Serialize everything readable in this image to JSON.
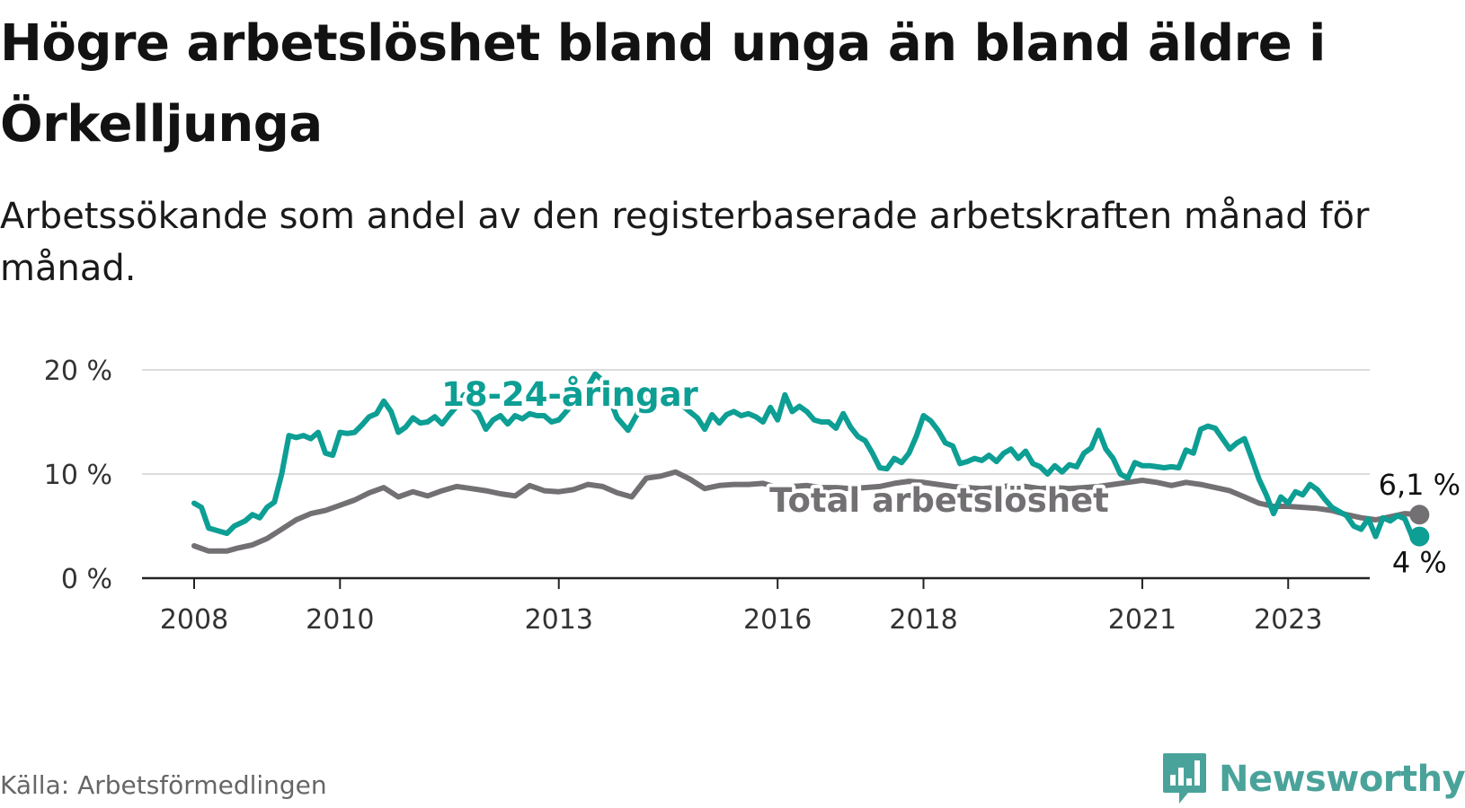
{
  "title": "Högre arbetslöshet bland unga än bland äldre i Örkelljunga",
  "subtitle": "Arbetssökande som andel av den registerbaserade arbetskraften månad för månad.",
  "source": "Källa: Arbetsförmedlingen",
  "brand": {
    "name": "Newsworthy",
    "icon": "newsworthy-logo-icon",
    "color": "#4aa39a"
  },
  "chart_data": {
    "type": "line",
    "title": "Högre arbetslöshet bland unga än bland äldre i Örkelljunga",
    "xlabel": "",
    "ylabel": "",
    "x_range": [
      2008,
      2023.8
    ],
    "ylim": [
      0,
      20
    ],
    "grid": true,
    "y_ticks": [
      {
        "value": 0,
        "label": "0 %"
      },
      {
        "value": 10,
        "label": "10 %"
      },
      {
        "value": 20,
        "label": "20 %"
      }
    ],
    "x_ticks": [
      {
        "value": 2008,
        "label": "2008"
      },
      {
        "value": 2010,
        "label": "2010"
      },
      {
        "value": 2013,
        "label": "2013"
      },
      {
        "value": 2016,
        "label": "2016"
      },
      {
        "value": 2018,
        "label": "2018"
      },
      {
        "value": 2021,
        "label": "2021"
      },
      {
        "value": 2023,
        "label": "2023"
      }
    ],
    "series": [
      {
        "name": "18-24-åringar",
        "color": "#0d9e94",
        "end_label": "4 %",
        "points": [
          [
            2008.0,
            7.2
          ],
          [
            2008.1,
            6.8
          ],
          [
            2008.2,
            4.8
          ],
          [
            2008.45,
            4.3
          ],
          [
            2008.55,
            5.0
          ],
          [
            2008.7,
            5.5
          ],
          [
            2008.8,
            6.1
          ],
          [
            2008.9,
            5.8
          ],
          [
            2009.0,
            6.8
          ],
          [
            2009.1,
            7.3
          ],
          [
            2009.2,
            10.0
          ],
          [
            2009.3,
            13.7
          ],
          [
            2009.4,
            13.5
          ],
          [
            2009.5,
            13.7
          ],
          [
            2009.6,
            13.4
          ],
          [
            2009.7,
            14.0
          ],
          [
            2009.8,
            12.0
          ],
          [
            2009.9,
            11.8
          ],
          [
            2010.0,
            14.0
          ],
          [
            2010.1,
            13.9
          ],
          [
            2010.2,
            14.0
          ],
          [
            2010.3,
            14.7
          ],
          [
            2010.4,
            15.5
          ],
          [
            2010.5,
            15.8
          ],
          [
            2010.6,
            17.0
          ],
          [
            2010.7,
            16.0
          ],
          [
            2010.8,
            14.0
          ],
          [
            2010.9,
            14.5
          ],
          [
            2011.0,
            15.4
          ],
          [
            2011.1,
            14.9
          ],
          [
            2011.2,
            15.0
          ],
          [
            2011.3,
            15.5
          ],
          [
            2011.4,
            14.8
          ],
          [
            2011.5,
            15.7
          ],
          [
            2011.6,
            16.5
          ],
          [
            2011.7,
            17.6
          ],
          [
            2011.8,
            16.5
          ],
          [
            2011.9,
            15.8
          ],
          [
            2012.0,
            14.3
          ],
          [
            2012.1,
            15.2
          ],
          [
            2012.2,
            15.6
          ],
          [
            2012.3,
            14.8
          ],
          [
            2012.4,
            15.6
          ],
          [
            2012.5,
            15.3
          ],
          [
            2012.6,
            15.8
          ],
          [
            2012.7,
            15.6
          ],
          [
            2012.8,
            15.6
          ],
          [
            2012.9,
            15.0
          ],
          [
            2013.0,
            15.2
          ],
          [
            2013.4,
            18.4
          ],
          [
            2013.5,
            19.6
          ],
          [
            2013.6,
            19.0
          ],
          [
            2013.8,
            15.4
          ],
          [
            2013.95,
            14.2
          ],
          [
            2014.2,
            17.3
          ],
          [
            2014.6,
            17.1
          ],
          [
            2014.9,
            15.4
          ],
          [
            2015.0,
            14.3
          ],
          [
            2015.1,
            15.7
          ],
          [
            2015.2,
            14.9
          ],
          [
            2015.3,
            15.7
          ],
          [
            2015.4,
            16.0
          ],
          [
            2015.5,
            15.6
          ],
          [
            2015.6,
            15.8
          ],
          [
            2015.7,
            15.5
          ],
          [
            2015.8,
            15.0
          ],
          [
            2015.9,
            16.4
          ],
          [
            2016.0,
            15.2
          ],
          [
            2016.1,
            17.6
          ],
          [
            2016.2,
            16.0
          ],
          [
            2016.3,
            16.5
          ],
          [
            2016.4,
            16.0
          ],
          [
            2016.5,
            15.2
          ],
          [
            2016.6,
            15.0
          ],
          [
            2016.7,
            15.0
          ],
          [
            2016.8,
            14.4
          ],
          [
            2016.9,
            15.8
          ],
          [
            2017.0,
            14.5
          ],
          [
            2017.1,
            13.6
          ],
          [
            2017.2,
            13.2
          ],
          [
            2017.3,
            12.0
          ],
          [
            2017.4,
            10.6
          ],
          [
            2017.5,
            10.5
          ],
          [
            2017.6,
            11.5
          ],
          [
            2017.7,
            11.1
          ],
          [
            2017.8,
            12.0
          ],
          [
            2017.9,
            13.6
          ],
          [
            2018.0,
            15.6
          ],
          [
            2018.1,
            15.1
          ],
          [
            2018.2,
            14.2
          ],
          [
            2018.3,
            13.0
          ],
          [
            2018.4,
            12.7
          ],
          [
            2018.5,
            11.0
          ],
          [
            2018.6,
            11.2
          ],
          [
            2018.7,
            11.5
          ],
          [
            2018.8,
            11.3
          ],
          [
            2018.9,
            11.8
          ],
          [
            2019.0,
            11.2
          ],
          [
            2019.1,
            12.0
          ],
          [
            2019.2,
            12.4
          ],
          [
            2019.3,
            11.5
          ],
          [
            2019.4,
            12.2
          ],
          [
            2019.5,
            11.0
          ],
          [
            2019.6,
            10.7
          ],
          [
            2019.7,
            10.0
          ],
          [
            2019.8,
            10.8
          ],
          [
            2019.9,
            10.2
          ],
          [
            2020.0,
            10.9
          ],
          [
            2020.1,
            10.7
          ],
          [
            2020.2,
            12.0
          ],
          [
            2020.3,
            12.5
          ],
          [
            2020.4,
            14.2
          ],
          [
            2020.5,
            12.4
          ],
          [
            2020.6,
            11.5
          ],
          [
            2020.7,
            10.0
          ],
          [
            2020.8,
            9.6
          ],
          [
            2020.9,
            11.1
          ],
          [
            2021.0,
            10.8
          ],
          [
            2021.1,
            10.8
          ],
          [
            2021.2,
            10.7
          ],
          [
            2021.3,
            10.6
          ],
          [
            2021.4,
            10.7
          ],
          [
            2021.5,
            10.6
          ],
          [
            2021.6,
            12.3
          ],
          [
            2021.7,
            12.0
          ],
          [
            2021.8,
            14.3
          ],
          [
            2021.9,
            14.6
          ],
          [
            2022.0,
            14.4
          ],
          [
            2022.1,
            13.4
          ],
          [
            2022.2,
            12.4
          ],
          [
            2022.3,
            13.0
          ],
          [
            2022.4,
            13.4
          ],
          [
            2022.5,
            11.5
          ],
          [
            2022.6,
            9.5
          ],
          [
            2022.7,
            8.0
          ],
          [
            2022.8,
            6.2
          ],
          [
            2022.9,
            7.8
          ],
          [
            2023.0,
            7.2
          ],
          [
            2023.1,
            8.3
          ],
          [
            2023.2,
            8.0
          ],
          [
            2023.3,
            9.0
          ],
          [
            2023.4,
            8.5
          ],
          [
            2023.5,
            7.6
          ],
          [
            2023.6,
            6.8
          ],
          [
            2023.8,
            6.0
          ],
          [
            2023.9,
            5.0
          ],
          [
            2024.0,
            4.7
          ],
          [
            2024.1,
            5.7
          ],
          [
            2024.2,
            4.0
          ],
          [
            2024.3,
            5.8
          ],
          [
            2024.4,
            5.5
          ],
          [
            2024.5,
            6.0
          ],
          [
            2024.6,
            5.7
          ],
          [
            2024.7,
            4.0
          ],
          [
            2024.8,
            4.0
          ]
        ]
      },
      {
        "name": "Total arbetslöshet",
        "color": "#737073",
        "end_label": "6,1 %",
        "points": [
          [
            2008.0,
            3.1
          ],
          [
            2008.2,
            2.6
          ],
          [
            2008.45,
            2.6
          ],
          [
            2008.6,
            2.9
          ],
          [
            2008.8,
            3.2
          ],
          [
            2009.0,
            3.8
          ],
          [
            2009.2,
            4.7
          ],
          [
            2009.4,
            5.6
          ],
          [
            2009.6,
            6.2
          ],
          [
            2009.8,
            6.5
          ],
          [
            2010.0,
            7.0
          ],
          [
            2010.2,
            7.5
          ],
          [
            2010.4,
            8.2
          ],
          [
            2010.6,
            8.7
          ],
          [
            2010.8,
            7.8
          ],
          [
            2011.0,
            8.3
          ],
          [
            2011.2,
            7.9
          ],
          [
            2011.4,
            8.4
          ],
          [
            2011.6,
            8.8
          ],
          [
            2011.8,
            8.6
          ],
          [
            2012.0,
            8.4
          ],
          [
            2012.2,
            8.1
          ],
          [
            2012.4,
            7.9
          ],
          [
            2012.6,
            8.9
          ],
          [
            2012.8,
            8.4
          ],
          [
            2013.0,
            8.3
          ],
          [
            2013.2,
            8.5
          ],
          [
            2013.4,
            9.0
          ],
          [
            2013.6,
            8.8
          ],
          [
            2013.8,
            8.2
          ],
          [
            2014.0,
            7.8
          ],
          [
            2014.2,
            9.6
          ],
          [
            2014.4,
            9.8
          ],
          [
            2014.6,
            10.2
          ],
          [
            2014.8,
            9.5
          ],
          [
            2015.0,
            8.6
          ],
          [
            2015.2,
            8.9
          ],
          [
            2015.4,
            9.0
          ],
          [
            2015.6,
            9.0
          ],
          [
            2015.8,
            9.1
          ],
          [
            2016.0,
            8.7
          ],
          [
            2016.2,
            8.8
          ],
          [
            2016.4,
            8.9
          ],
          [
            2016.6,
            8.7
          ],
          [
            2016.8,
            8.7
          ],
          [
            2017.0,
            8.6
          ],
          [
            2017.2,
            8.7
          ],
          [
            2017.4,
            8.8
          ],
          [
            2017.6,
            9.1
          ],
          [
            2017.8,
            9.3
          ],
          [
            2018.0,
            9.2
          ],
          [
            2018.2,
            9.0
          ],
          [
            2018.4,
            8.8
          ],
          [
            2018.6,
            8.7
          ],
          [
            2018.8,
            8.6
          ],
          [
            2019.0,
            8.7
          ],
          [
            2019.2,
            8.9
          ],
          [
            2019.4,
            8.8
          ],
          [
            2019.6,
            8.6
          ],
          [
            2019.8,
            8.7
          ],
          [
            2020.0,
            8.6
          ],
          [
            2020.2,
            8.7
          ],
          [
            2020.4,
            8.8
          ],
          [
            2020.6,
            9.0
          ],
          [
            2020.8,
            9.2
          ],
          [
            2021.0,
            9.4
          ],
          [
            2021.2,
            9.2
          ],
          [
            2021.4,
            8.9
          ],
          [
            2021.6,
            9.2
          ],
          [
            2021.8,
            9.0
          ],
          [
            2022.0,
            8.7
          ],
          [
            2022.2,
            8.4
          ],
          [
            2022.4,
            7.8
          ],
          [
            2022.6,
            7.2
          ],
          [
            2022.8,
            6.9
          ],
          [
            2023.0,
            6.9
          ],
          [
            2023.2,
            6.8
          ],
          [
            2023.4,
            6.7
          ],
          [
            2023.6,
            6.5
          ],
          [
            2023.8,
            6.1
          ],
          [
            2024.0,
            5.8
          ],
          [
            2024.2,
            5.6
          ],
          [
            2024.4,
            5.9
          ],
          [
            2024.6,
            6.2
          ],
          [
            2024.8,
            6.1
          ]
        ]
      }
    ]
  }
}
